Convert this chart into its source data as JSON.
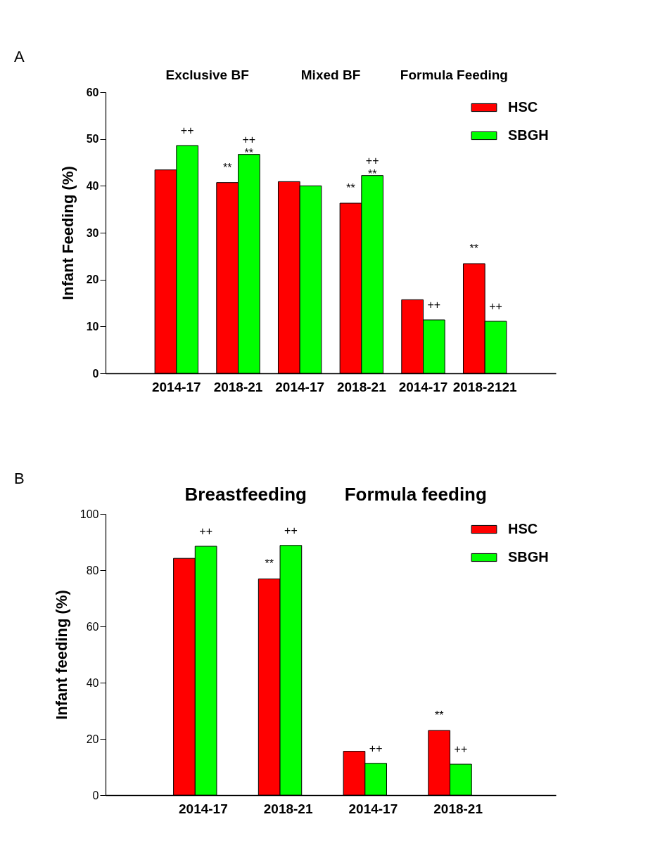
{
  "chart_data": [
    {
      "type": "bar",
      "ylabel": "Infant Feeding (%)",
      "categories": [
        "2014-17",
        "2018-21",
        "2014-17",
        "2018-21",
        "2014-17",
        "2018-2121"
      ],
      "series": [
        {
          "name": "HSC",
          "color": "#ff0000",
          "values": [
            43.4,
            40.7,
            40.9,
            36.3,
            15.7,
            23.4
          ],
          "value_labels": [
            null,
            "**",
            null,
            "**",
            null,
            "**"
          ]
        },
        {
          "name": "SBGH",
          "color": "#00ff00",
          "values": [
            48.6,
            46.7,
            40.0,
            42.2,
            11.4,
            11.1
          ],
          "value_labels": [
            "++",
            "++\n**",
            null,
            "++\n**",
            "++",
            "++"
          ]
        }
      ],
      "ylim": [
        0,
        60
      ],
      "yticks": [
        0,
        10,
        20,
        30,
        40,
        50,
        60
      ],
      "grid": false,
      "legend": "top right",
      "annotations": [
        "A",
        "Exclusive BF",
        "Mixed BF",
        "Formula Feeding"
      ]
    },
    {
      "type": "bar",
      "ylabel": "Infant feeding (%)",
      "categories": [
        "2014-17",
        "2018-21",
        "2014-17",
        "2018-21"
      ],
      "series": [
        {
          "name": "HSC",
          "color": "#ff0000",
          "values": [
            84.2,
            76.9,
            15.6,
            23.0
          ],
          "value_labels": [
            null,
            "**",
            null,
            "**"
          ]
        },
        {
          "name": "SBGH",
          "color": "#00ff00",
          "values": [
            88.5,
            88.8,
            11.3,
            11.0
          ],
          "value_labels": [
            "++",
            "++",
            "++",
            "++"
          ]
        }
      ],
      "ylim": [
        0,
        100
      ],
      "yticks": [
        0,
        20,
        40,
        60,
        80,
        100
      ],
      "grid": false,
      "legend": "top right",
      "annotations": [
        "B",
        "Breastfeeding",
        "Formula feeding"
      ]
    }
  ]
}
